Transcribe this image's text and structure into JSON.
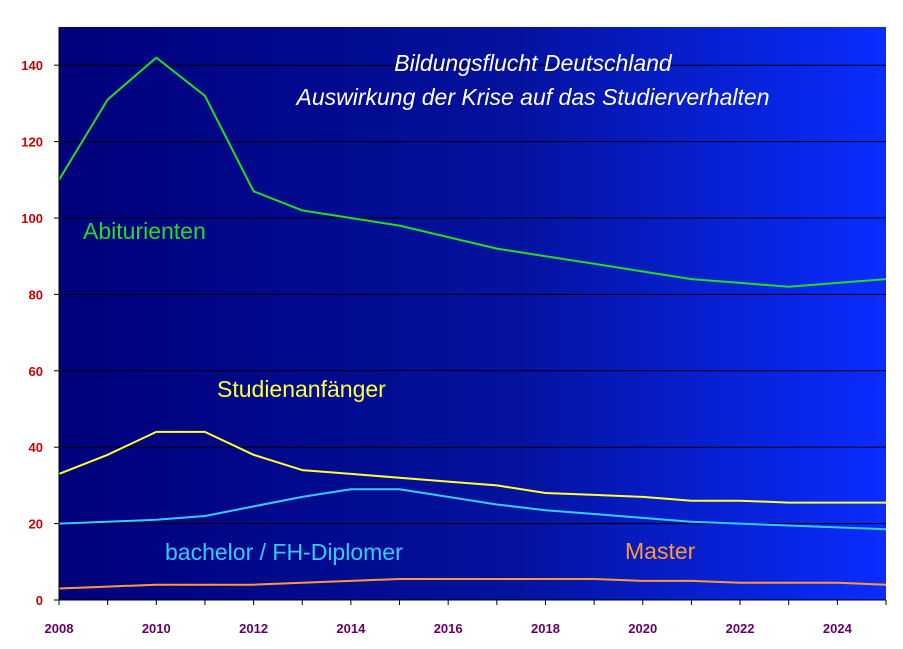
{
  "chart_data": {
    "type": "line",
    "title": [
      "Bildungsflucht Deutschland",
      "Auswirkung der Krise auf das Studierverhalten"
    ],
    "xlabel": "",
    "ylabel": "",
    "xlim": [
      2008,
      2025
    ],
    "ylim": [
      0,
      150
    ],
    "xticks": [
      2008,
      2010,
      2012,
      2014,
      2016,
      2018,
      2020,
      2022,
      2024
    ],
    "yticks": [
      0,
      20,
      40,
      60,
      80,
      100,
      120,
      140
    ],
    "grid": true,
    "legend": "inline labels",
    "x": [
      2008,
      2009,
      2010,
      2011,
      2012,
      2013,
      2014,
      2015,
      2016,
      2017,
      2018,
      2019,
      2020,
      2021,
      2022,
      2023,
      2024,
      2025
    ],
    "series": [
      {
        "name": "Abiturienten",
        "color": "#22dd22",
        "values": [
          110,
          131,
          142,
          132,
          107,
          102,
          100,
          98,
          95,
          92,
          90,
          88,
          86,
          84,
          83,
          82,
          83,
          84
        ]
      },
      {
        "name": "Studienanfänger",
        "color": "#ffff33",
        "values": [
          33,
          38,
          44,
          44,
          38,
          34,
          33,
          32,
          31,
          30,
          28,
          27.5,
          27,
          26,
          26,
          25.5,
          25.5,
          25.5
        ]
      },
      {
        "name": "bachelor / FH-Diplomer",
        "color": "#33ccff",
        "values": [
          20,
          20.5,
          21,
          22,
          24.5,
          27,
          29,
          29,
          27,
          25,
          23.5,
          22.5,
          21.5,
          20.5,
          20,
          19.5,
          19,
          18.5
        ]
      },
      {
        "name": "Master",
        "color": "#ff9933",
        "values": [
          3,
          3.5,
          4,
          4,
          4,
          4.5,
          5,
          5.5,
          5.5,
          5.5,
          5.5,
          5.5,
          5,
          5,
          4.5,
          4.5,
          4.5,
          4
        ]
      }
    ],
    "colors": {
      "axis_text_y": "#cc0000",
      "axis_text_x": "#660066",
      "gridline": "#000000",
      "plot_bg_left": "#00007a",
      "plot_bg_right": "#0a28ff"
    }
  }
}
